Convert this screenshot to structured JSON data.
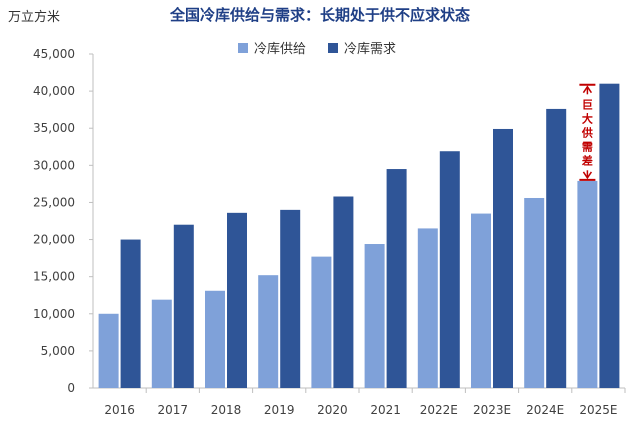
{
  "chart_data": {
    "type": "bar",
    "title": "全国冷库供给与需求：长期处于供不应求状态",
    "unit_label": "万立方米",
    "categories": [
      "2016",
      "2017",
      "2018",
      "2019",
      "2020",
      "2021",
      "2022E",
      "2023E",
      "2024E",
      "2025E"
    ],
    "series": [
      {
        "name": "冷库供给",
        "color": "#7fa1d9",
        "values": [
          10000,
          11900,
          13100,
          15200,
          17700,
          19400,
          21500,
          23500,
          25600,
          27900
        ]
      },
      {
        "name": "冷库需求",
        "color": "#2f5597",
        "values": [
          20000,
          22000,
          23600,
          24000,
          25800,
          29500,
          31900,
          34900,
          37600,
          41000
        ]
      }
    ],
    "ylim": [
      0,
      45000
    ],
    "yticks": [
      "0",
      "5,000",
      "10,000",
      "15,000",
      "20,000",
      "25,000",
      "30,000",
      "35,000",
      "40,000",
      "45,000"
    ],
    "grid": false,
    "legend_position": "top-center",
    "annotation": {
      "text": "巨大供需差",
      "category": "2025E",
      "color": "#c00000"
    }
  }
}
